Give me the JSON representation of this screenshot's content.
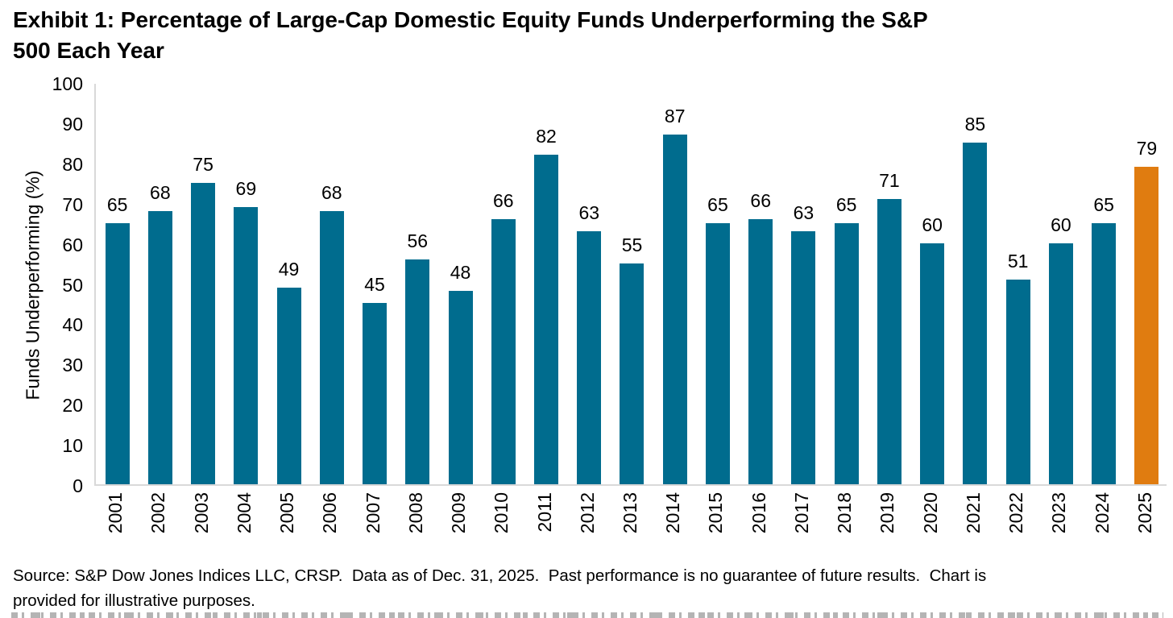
{
  "page": {
    "title_line1": "Exhibit 1: Percentage of Large-Cap Domestic Equity Funds Underperforming the S&P",
    "title_line2": "500 Each Year"
  },
  "chart_data": {
    "type": "bar",
    "title": "Exhibit 1: Percentage of Large-Cap Domestic Equity Funds Underperforming the S&P 500 Each Year",
    "categories": [
      "2001",
      "2002",
      "2003",
      "2004",
      "2005",
      "2006",
      "2007",
      "2008",
      "2009",
      "2010",
      "2011",
      "2012",
      "2013",
      "2014",
      "2015",
      "2016",
      "2017",
      "2018",
      "2019",
      "2020",
      "2021",
      "2022",
      "2023",
      "2024",
      "2025"
    ],
    "values": [
      65,
      68,
      75,
      69,
      49,
      68,
      45,
      56,
      48,
      66,
      82,
      63,
      55,
      87,
      65,
      66,
      63,
      65,
      71,
      60,
      85,
      51,
      60,
      65,
      79
    ],
    "xlabel": "",
    "ylabel": "Funds Underperforming (%)",
    "ylim": [
      0,
      100
    ],
    "ytick_step": 10,
    "yticks": [
      0,
      10,
      20,
      30,
      40,
      50,
      60,
      70,
      80,
      90,
      100
    ],
    "grid": false,
    "legend_position": "none",
    "value_labels": true,
    "highlight_category": "2025",
    "colors": {
      "bar": "#006C8E",
      "highlight": "#E07C10",
      "axis_line": "#D9D9D9",
      "label_text": "#000000"
    }
  },
  "footer": {
    "source_line1": "Source: S&P Dow Jones Indices LLC, CRSP.  Data as of Dec. 31, 2025.  Past performance is no guarantee of future results.  Chart is",
    "source_line2": "provided for illustrative purposes."
  }
}
